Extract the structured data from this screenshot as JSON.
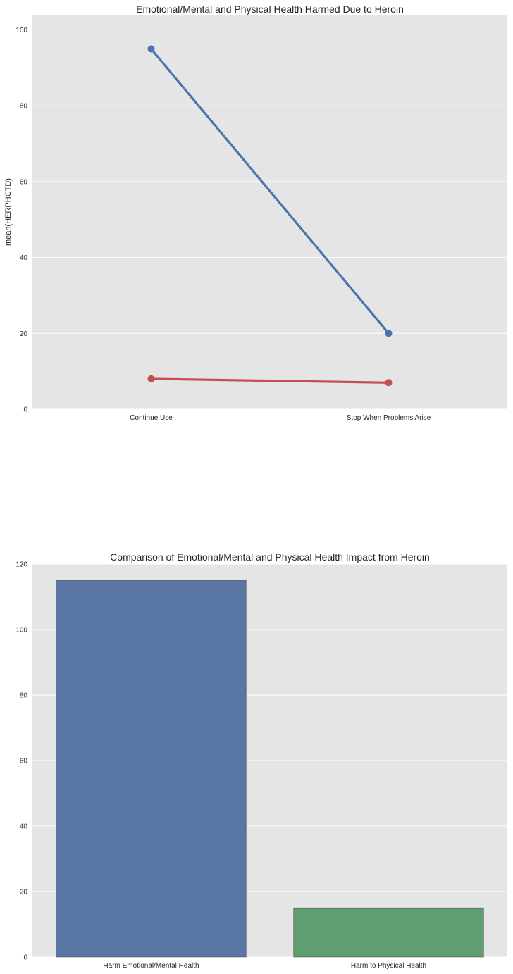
{
  "chart_data": [
    {
      "type": "line",
      "title": "Emotional/Mental and Physical Health Harmed Due to Heroin",
      "xlabel": "",
      "ylabel": "mean(HERPHCTD)",
      "categories": [
        "Continue Use",
        "Stop When Problems Arise"
      ],
      "ylim": [
        0,
        104
      ],
      "yticks": [
        0,
        20,
        40,
        60,
        80,
        100
      ],
      "grid": true,
      "legend": "none",
      "series": [
        {
          "values": [
            95,
            20
          ],
          "color": "#4c72b0"
        },
        {
          "values": [
            8,
            7
          ],
          "color": "#c44e52"
        }
      ]
    },
    {
      "type": "bar",
      "title": "Comparison of Emotional/Mental and Physical Health Impact from Heroin",
      "xlabel": "",
      "ylabel": "",
      "categories": [
        "Harm Emotional/Mental Health",
        "Harm to Physical Health"
      ],
      "values": [
        115,
        15
      ],
      "colors": [
        "#5975a4",
        "#5f9e6e"
      ],
      "ylim": [
        0,
        120
      ],
      "yticks": [
        0,
        20,
        40,
        60,
        80,
        100,
        120
      ],
      "grid": true,
      "legend": "none"
    }
  ]
}
